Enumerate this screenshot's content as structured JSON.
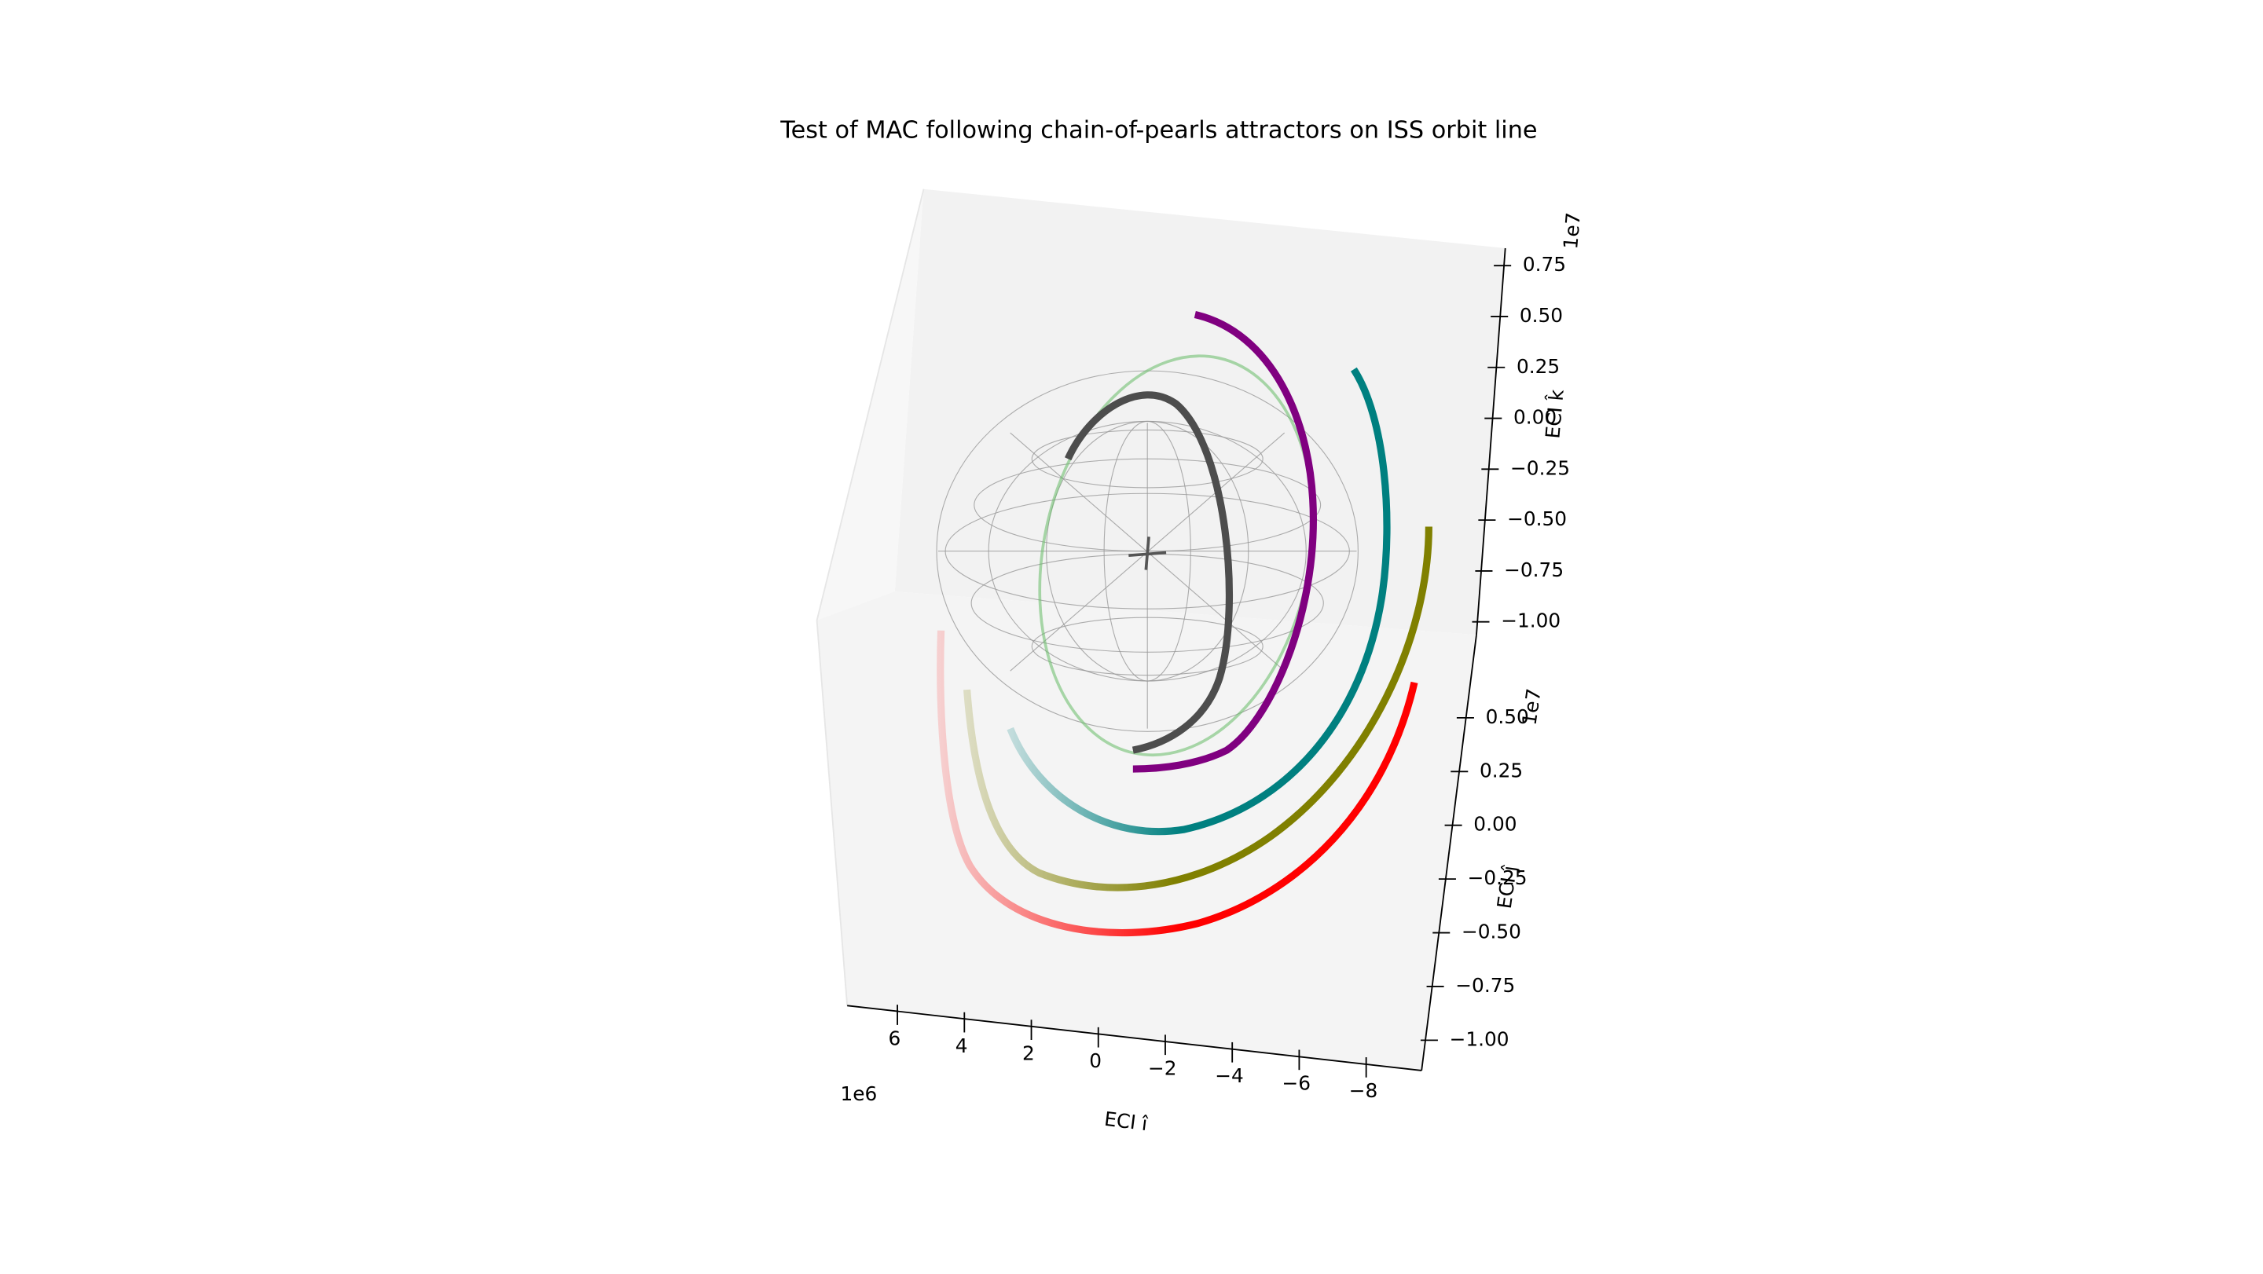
{
  "chart_data": {
    "type": "line3d",
    "title": "Test of MAC following chain-of-pearls attractors on ISS orbit line",
    "xlabel": "ECI î",
    "ylabel": "ECI ĵ",
    "zlabel": "ECI k̂",
    "x_offset": "1e6",
    "y_offset": "1e7",
    "z_offset": "1e7",
    "xticks": [
      {
        "value": 6,
        "label": "6"
      },
      {
        "value": 4,
        "label": "4"
      },
      {
        "value": 2,
        "label": "2"
      },
      {
        "value": 0,
        "label": "0"
      },
      {
        "value": -2,
        "label": "−2"
      },
      {
        "value": -4,
        "label": "−4"
      },
      {
        "value": -6,
        "label": "−6"
      },
      {
        "value": -8,
        "label": "−8"
      }
    ],
    "yticks": [
      {
        "value": 0.5,
        "label": "0.50"
      },
      {
        "value": 0.25,
        "label": "0.25"
      },
      {
        "value": 0,
        "label": "0.00"
      },
      {
        "value": -0.25,
        "label": "−0.25"
      },
      {
        "value": -0.5,
        "label": "−0.50"
      },
      {
        "value": -0.75,
        "label": "−0.75"
      },
      {
        "value": -1,
        "label": "−1.00"
      }
    ],
    "zticks": [
      {
        "value": 0.75,
        "label": "0.75"
      },
      {
        "value": 0.5,
        "label": "0.50"
      },
      {
        "value": 0.25,
        "label": "0.25"
      },
      {
        "value": 0,
        "label": "0.00"
      },
      {
        "value": -0.25,
        "label": "−0.25"
      },
      {
        "value": -0.5,
        "label": "−0.50"
      },
      {
        "value": -0.75,
        "label": "−0.75"
      },
      {
        "value": -1,
        "label": "−1.00"
      }
    ]
  }
}
